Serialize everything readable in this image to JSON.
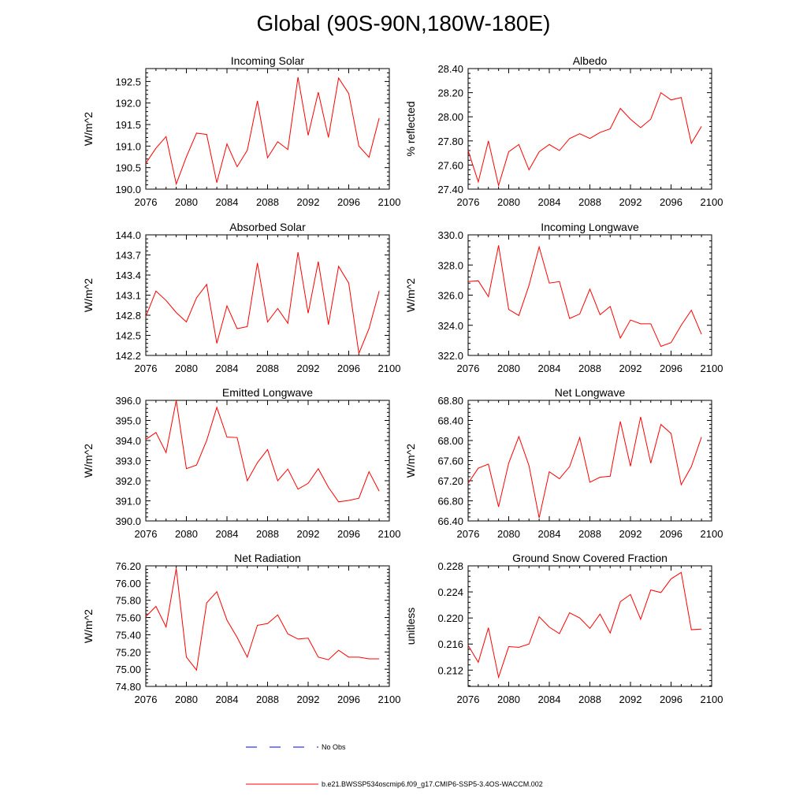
{
  "title": "Global (90S-90N,180W-180E)",
  "colors": {
    "model": "#ff0000",
    "obs": "#0000ff",
    "axis": "#000000"
  },
  "legend": {
    "obs_label": "No Obs",
    "case_label": "b.e21.BWSSP534oscmip6.f09_g17.CMIP6-SSP5-3.4OS-WACCM.002"
  },
  "chart_data": [
    {
      "type": "line",
      "title": "Incoming Solar",
      "xlabel": "",
      "ylabel": "W/m^2",
      "xlim": [
        2076,
        2100
      ],
      "ylim": [
        190.0,
        192.8
      ],
      "xticks": [
        2076,
        2080,
        2084,
        2088,
        2092,
        2096,
        2100
      ],
      "yticks": [
        190.0,
        190.5,
        191.0,
        191.5,
        192.0,
        192.5
      ],
      "ytick_labels": [
        "190.0",
        "190.5",
        "191.0",
        "191.5",
        "192.0",
        "192.5"
      ],
      "x": [
        2076,
        2077,
        2078,
        2079,
        2080,
        2081,
        2082,
        2083,
        2084,
        2085,
        2086,
        2087,
        2088,
        2089,
        2090,
        2091,
        2092,
        2093,
        2094,
        2095,
        2096,
        2097,
        2098,
        2099
      ],
      "series": [
        {
          "name": "b.e21.BWSSP534oscmip6.f09_g17.CMIP6-SSP5-3.4OS-WACCM.002",
          "values": [
            190.6,
            190.95,
            191.22,
            190.12,
            190.75,
            191.3,
            191.27,
            190.15,
            191.05,
            190.52,
            190.9,
            192.05,
            190.73,
            191.1,
            190.92,
            192.6,
            191.25,
            192.25,
            191.2,
            192.58,
            192.22,
            191.0,
            190.74,
            191.65
          ]
        }
      ]
    },
    {
      "type": "line",
      "title": "Albedo",
      "xlabel": "",
      "ylabel": "% reflected",
      "xlim": [
        2076,
        2100
      ],
      "ylim": [
        27.4,
        28.4
      ],
      "xticks": [
        2076,
        2080,
        2084,
        2088,
        2092,
        2096,
        2100
      ],
      "yticks": [
        27.4,
        27.6,
        27.8,
        28.0,
        28.2,
        28.4
      ],
      "ytick_labels": [
        "27.40",
        "27.60",
        "27.80",
        "28.00",
        "28.20",
        "28.40"
      ],
      "x": [
        2076,
        2077,
        2078,
        2079,
        2080,
        2081,
        2082,
        2083,
        2084,
        2085,
        2086,
        2087,
        2088,
        2089,
        2090,
        2091,
        2092,
        2093,
        2094,
        2095,
        2096,
        2097,
        2098,
        2099
      ],
      "series": [
        {
          "name": "b.e21.BWSSP534oscmip6.f09_g17.CMIP6-SSP5-3.4OS-WACCM.002",
          "values": [
            27.72,
            27.46,
            27.8,
            27.43,
            27.71,
            27.77,
            27.56,
            27.71,
            27.77,
            27.72,
            27.82,
            27.86,
            27.82,
            27.87,
            27.9,
            28.07,
            27.98,
            27.91,
            27.98,
            28.2,
            28.14,
            28.16,
            27.78,
            27.92
          ]
        }
      ]
    },
    {
      "type": "line",
      "title": "Absorbed Solar",
      "xlabel": "",
      "ylabel": "W/m^2",
      "xlim": [
        2076,
        2100
      ],
      "ylim": [
        142.2,
        144.0
      ],
      "xticks": [
        2076,
        2080,
        2084,
        2088,
        2092,
        2096,
        2100
      ],
      "yticks": [
        142.2,
        142.5,
        142.8,
        143.1,
        143.4,
        143.7,
        144.0
      ],
      "ytick_labels": [
        "142.2",
        "142.5",
        "142.8",
        "143.1",
        "143.4",
        "143.7",
        "144.0"
      ],
      "x": [
        2076,
        2077,
        2078,
        2079,
        2080,
        2081,
        2082,
        2083,
        2084,
        2085,
        2086,
        2087,
        2088,
        2089,
        2090,
        2091,
        2092,
        2093,
        2094,
        2095,
        2096,
        2097,
        2098,
        2099
      ],
      "series": [
        {
          "name": "b.e21.BWSSP534oscmip6.f09_g17.CMIP6-SSP5-3.4OS-WACCM.002",
          "values": [
            142.78,
            143.16,
            143.02,
            142.84,
            142.7,
            143.06,
            143.26,
            142.38,
            142.94,
            142.6,
            142.63,
            143.58,
            142.7,
            142.9,
            142.68,
            143.74,
            142.83,
            143.6,
            142.66,
            143.53,
            143.28,
            142.23,
            142.6,
            143.16
          ]
        }
      ]
    },
    {
      "type": "line",
      "title": "Incoming Longwave",
      "xlabel": "",
      "ylabel": "W/m^2",
      "xlim": [
        2076,
        2100
      ],
      "ylim": [
        322.0,
        330.0
      ],
      "xticks": [
        2076,
        2080,
        2084,
        2088,
        2092,
        2096,
        2100
      ],
      "yticks": [
        322.0,
        324.0,
        326.0,
        328.0,
        330.0
      ],
      "ytick_labels": [
        "322.0",
        "324.0",
        "326.0",
        "328.0",
        "330.0"
      ],
      "x": [
        2076,
        2077,
        2078,
        2079,
        2080,
        2081,
        2082,
        2083,
        2084,
        2085,
        2086,
        2087,
        2088,
        2089,
        2090,
        2091,
        2092,
        2093,
        2094,
        2095,
        2096,
        2097,
        2098,
        2099
      ],
      "series": [
        {
          "name": "b.e21.BWSSP534oscmip6.f09_g17.CMIP6-SSP5-3.4OS-WACCM.002",
          "values": [
            326.9,
            326.95,
            325.9,
            329.3,
            325.05,
            324.65,
            326.65,
            329.2,
            326.8,
            326.9,
            324.45,
            324.75,
            326.4,
            324.7,
            325.25,
            323.15,
            324.35,
            324.1,
            324.1,
            322.6,
            322.85,
            324.0,
            325.0,
            323.4
          ]
        }
      ]
    },
    {
      "type": "line",
      "title": "Emitted Longwave",
      "xlabel": "",
      "ylabel": "W/m^2",
      "xlim": [
        2076,
        2100
      ],
      "ylim": [
        390.0,
        396.0
      ],
      "xticks": [
        2076,
        2080,
        2084,
        2088,
        2092,
        2096,
        2100
      ],
      "yticks": [
        390.0,
        391.0,
        392.0,
        393.0,
        394.0,
        395.0,
        396.0
      ],
      "ytick_labels": [
        "390.0",
        "391.0",
        "392.0",
        "393.0",
        "394.0",
        "395.0",
        "396.0"
      ],
      "x": [
        2076,
        2077,
        2078,
        2079,
        2080,
        2081,
        2082,
        2083,
        2084,
        2085,
        2086,
        2087,
        2088,
        2089,
        2090,
        2091,
        2092,
        2093,
        2094,
        2095,
        2096,
        2097,
        2098,
        2099
      ],
      "series": [
        {
          "name": "b.e21.BWSSP534oscmip6.f09_g17.CMIP6-SSP5-3.4OS-WACCM.002",
          "values": [
            394.05,
            394.4,
            393.4,
            396.0,
            392.6,
            392.78,
            394.0,
            395.65,
            394.17,
            394.15,
            392.0,
            392.9,
            393.55,
            392.0,
            392.58,
            391.58,
            391.87,
            392.6,
            391.67,
            390.95,
            391.02,
            391.13,
            392.45,
            391.48
          ]
        }
      ]
    },
    {
      "type": "line",
      "title": "Net Longwave",
      "xlabel": "",
      "ylabel": "W/m^2",
      "xlim": [
        2076,
        2100
      ],
      "ylim": [
        66.4,
        68.8
      ],
      "xticks": [
        2076,
        2080,
        2084,
        2088,
        2092,
        2096,
        2100
      ],
      "yticks": [
        66.4,
        66.8,
        67.2,
        67.6,
        68.0,
        68.4,
        68.8
      ],
      "ytick_labels": [
        "66.40",
        "66.80",
        "67.20",
        "67.60",
        "68.00",
        "68.40",
        "68.80"
      ],
      "x": [
        2076,
        2077,
        2078,
        2079,
        2080,
        2081,
        2082,
        2083,
        2084,
        2085,
        2086,
        2087,
        2088,
        2089,
        2090,
        2091,
        2092,
        2093,
        2094,
        2095,
        2096,
        2097,
        2098,
        2099
      ],
      "series": [
        {
          "name": "b.e21.BWSSP534oscmip6.f09_g17.CMIP6-SSP5-3.4OS-WACCM.002",
          "values": [
            67.15,
            67.45,
            67.53,
            66.68,
            67.55,
            68.08,
            67.5,
            66.46,
            67.38,
            67.24,
            67.48,
            68.06,
            67.17,
            67.27,
            67.29,
            68.38,
            67.49,
            68.47,
            67.55,
            68.32,
            68.14,
            67.12,
            67.48,
            68.07
          ]
        }
      ]
    },
    {
      "type": "line",
      "title": "Net Radiation",
      "xlabel": "",
      "ylabel": "W/m^2",
      "xlim": [
        2076,
        2100
      ],
      "ylim": [
        74.8,
        76.2
      ],
      "xticks": [
        2076,
        2080,
        2084,
        2088,
        2092,
        2096,
        2100
      ],
      "yticks": [
        74.8,
        75.0,
        75.2,
        75.4,
        75.6,
        75.8,
        76.0,
        76.2
      ],
      "ytick_labels": [
        "74.80",
        "75.00",
        "75.20",
        "75.40",
        "75.60",
        "75.80",
        "76.00",
        "76.20"
      ],
      "x": [
        2076,
        2077,
        2078,
        2079,
        2080,
        2081,
        2082,
        2083,
        2084,
        2085,
        2086,
        2087,
        2088,
        2089,
        2090,
        2091,
        2092,
        2093,
        2094,
        2095,
        2096,
        2097,
        2098,
        2099
      ],
      "series": [
        {
          "name": "b.e21.BWSSP534oscmip6.f09_g17.CMIP6-SSP5-3.4OS-WACCM.002",
          "values": [
            75.61,
            75.73,
            75.49,
            76.17,
            75.14,
            74.99,
            75.77,
            75.9,
            75.57,
            75.37,
            75.14,
            75.51,
            75.53,
            75.63,
            75.41,
            75.35,
            75.36,
            75.14,
            75.11,
            75.22,
            75.14,
            75.14,
            75.12,
            75.12
          ]
        }
      ]
    },
    {
      "type": "line",
      "title": "Ground Snow Covered Fraction",
      "xlabel": "",
      "ylabel": "unitless",
      "xlim": [
        2076,
        2100
      ],
      "ylim": [
        0.2095,
        0.228
      ],
      "xticks": [
        2076,
        2080,
        2084,
        2088,
        2092,
        2096,
        2100
      ],
      "yticks": [
        0.212,
        0.216,
        0.22,
        0.224,
        0.228
      ],
      "ytick_labels": [
        "0.212",
        "0.216",
        "0.220",
        "0.224",
        "0.228"
      ],
      "x": [
        2076,
        2077,
        2078,
        2079,
        2080,
        2081,
        2082,
        2083,
        2084,
        2085,
        2086,
        2087,
        2088,
        2089,
        2090,
        2091,
        2092,
        2093,
        2094,
        2095,
        2096,
        2097,
        2098,
        2099
      ],
      "series": [
        {
          "name": "b.e21.BWSSP534oscmip6.f09_g17.CMIP6-SSP5-3.4OS-WACCM.002",
          "values": [
            0.2158,
            0.2132,
            0.2185,
            0.2109,
            0.2156,
            0.2155,
            0.216,
            0.2202,
            0.2186,
            0.2176,
            0.2208,
            0.22,
            0.2184,
            0.2206,
            0.2177,
            0.2225,
            0.2236,
            0.2198,
            0.2243,
            0.2239,
            0.226,
            0.227,
            0.2182,
            0.2183
          ]
        }
      ]
    }
  ]
}
